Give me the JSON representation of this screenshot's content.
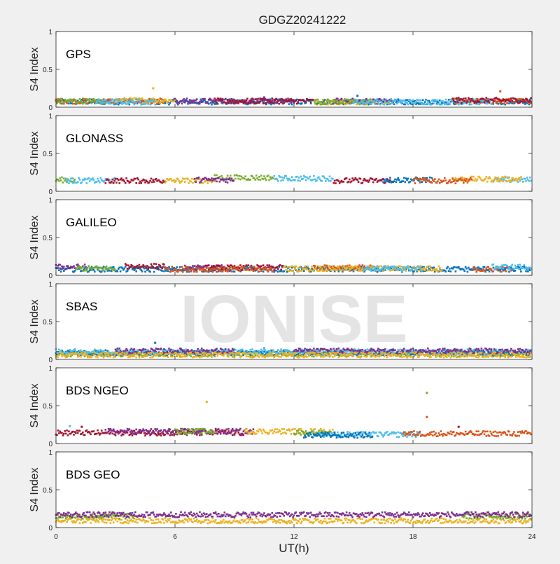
{
  "figure": {
    "title": "GDGZ20241222",
    "xlabel": "UT(h)",
    "watermark": "IONISE",
    "colors": {
      "background": "#f0f0f0",
      "axes_bg": "#ffffff",
      "watermark": "#e6e6e6"
    }
  },
  "chart_data": [
    {
      "type": "scatter",
      "panel": "GPS",
      "ylabel": "S4 Index",
      "xlim": [
        0,
        24
      ],
      "ylim": [
        0,
        1
      ],
      "xticks": [
        0,
        6,
        12,
        18,
        24
      ],
      "yticks": [
        0,
        0.5,
        1
      ],
      "grid": false,
      "series": [
        {
          "color": "#0072bd",
          "segments": [
            [
              0,
              24,
              0.07
            ]
          ]
        },
        {
          "color": "#d95319",
          "segments": [
            [
              0,
              5.5,
              0.08
            ],
            [
              20,
              24,
              0.08
            ]
          ]
        },
        {
          "color": "#edb120",
          "segments": [
            [
              3,
              6,
              0.09
            ],
            [
              13,
              17,
              0.07
            ]
          ]
        },
        {
          "color": "#7e2f8e",
          "segments": [
            [
              6,
              12,
              0.08
            ],
            [
              14,
              17,
              0.08
            ]
          ]
        },
        {
          "color": "#77ac30",
          "segments": [
            [
              0,
              2.5,
              0.08
            ],
            [
              13,
              16,
              0.07
            ]
          ]
        },
        {
          "color": "#4dbeee",
          "segments": [
            [
              2,
              5,
              0.07
            ],
            [
              15,
              22,
              0.07
            ]
          ]
        },
        {
          "color": "#a2142f",
          "segments": [
            [
              8,
              13,
              0.08
            ],
            [
              20,
              24,
              0.09
            ]
          ]
        }
      ],
      "outliers": [
        [
          4.9,
          0.25,
          "#edb120"
        ],
        [
          22.4,
          0.21,
          "#d95319"
        ],
        [
          15.2,
          0.15,
          "#0072bd"
        ],
        [
          10.5,
          0.13,
          "#7e2f8e"
        ]
      ]
    },
    {
      "type": "scatter",
      "panel": "GLONASS",
      "ylabel": "S4 Index",
      "xlim": [
        0,
        24
      ],
      "ylim": [
        0,
        1
      ],
      "xticks": [
        0,
        6,
        12,
        18,
        24
      ],
      "yticks": [
        0,
        0.5,
        1
      ],
      "grid": false,
      "series": [
        {
          "color": "#77ac30",
          "segments": [
            [
              0,
              1,
              0.15
            ],
            [
              8,
              11,
              0.18
            ]
          ]
        },
        {
          "color": "#4dbeee",
          "segments": [
            [
              0.5,
              3,
              0.14
            ],
            [
              11,
              14,
              0.17
            ],
            [
              22,
              24,
              0.15
            ]
          ]
        },
        {
          "color": "#a2142f",
          "segments": [
            [
              2.5,
              5.5,
              0.14
            ],
            [
              14,
              17,
              0.14
            ]
          ]
        },
        {
          "color": "#edb120",
          "segments": [
            [
              5.5,
              8,
              0.14
            ],
            [
              20,
              23.5,
              0.16
            ]
          ]
        },
        {
          "color": "#7e2f8e",
          "segments": [
            [
              7,
              9,
              0.15
            ]
          ]
        },
        {
          "color": "#0072bd",
          "segments": [
            [
              16.5,
              19,
              0.15
            ]
          ]
        },
        {
          "color": "#d95319",
          "segments": [
            [
              18,
              21,
              0.14
            ]
          ]
        }
      ],
      "outliers": []
    },
    {
      "type": "scatter",
      "panel": "GALILEO",
      "ylabel": "S4 Index",
      "xlim": [
        0,
        24
      ],
      "ylim": [
        0,
        1
      ],
      "xticks": [
        0,
        6,
        12,
        18,
        24
      ],
      "yticks": [
        0,
        0.5,
        1
      ],
      "grid": false,
      "series": [
        {
          "color": "#0072bd",
          "segments": [
            [
              0,
              24,
              0.08
            ]
          ]
        },
        {
          "color": "#7e2f8e",
          "segments": [
            [
              0,
              1.5,
              0.11
            ],
            [
              6.5,
              8.5,
              0.1
            ]
          ]
        },
        {
          "color": "#a2142f",
          "segments": [
            [
              3.5,
              5.5,
              0.12
            ],
            [
              7.5,
              11.5,
              0.1
            ]
          ]
        },
        {
          "color": "#77ac30",
          "segments": [
            [
              1,
              3,
              0.09
            ]
          ]
        },
        {
          "color": "#d95319",
          "segments": [
            [
              5.5,
              11,
              0.08
            ],
            [
              13,
              16,
              0.1
            ],
            [
              21,
              23,
              0.08
            ]
          ]
        },
        {
          "color": "#edb120",
          "segments": [
            [
              11.5,
              19.5,
              0.09
            ]
          ]
        },
        {
          "color": "#4dbeee",
          "segments": [
            [
              15.5,
              18.5,
              0.09
            ],
            [
              22,
              24,
              0.11
            ]
          ]
        }
      ],
      "outliers": []
    },
    {
      "type": "scatter",
      "panel": "SBAS",
      "ylabel": "S4 Index",
      "xlim": [
        0,
        24
      ],
      "ylim": [
        0,
        1
      ],
      "xticks": [
        0,
        6,
        12,
        18,
        24
      ],
      "yticks": [
        0,
        0.5,
        1
      ],
      "grid": false,
      "series": [
        {
          "color": "#77ac30",
          "segments": [
            [
              0,
              24,
              0.07
            ]
          ]
        },
        {
          "color": "#0072bd",
          "segments": [
            [
              0,
              24,
              0.09
            ]
          ]
        },
        {
          "color": "#4dbeee",
          "segments": [
            [
              0,
              24,
              0.1
            ]
          ]
        },
        {
          "color": "#7e2f8e",
          "segments": [
            [
              3,
              9,
              0.11
            ],
            [
              12,
              24,
              0.11
            ]
          ]
        },
        {
          "color": "#edb120",
          "segments": [
            [
              0,
              24,
              0.06
            ]
          ]
        }
      ],
      "outliers": [
        [
          5,
          0.22,
          "#0072bd"
        ],
        [
          10.5,
          0.15,
          "#4dbeee"
        ]
      ]
    },
    {
      "type": "scatter",
      "panel": "BDS NGEO",
      "ylabel": "S4 Index",
      "xlim": [
        0,
        24
      ],
      "ylim": [
        0,
        1
      ],
      "xticks": [
        0,
        6,
        12,
        18,
        24
      ],
      "yticks": [
        0,
        0.5,
        1
      ],
      "grid": false,
      "series": [
        {
          "color": "#a2142f",
          "segments": [
            [
              0,
              9.5,
              0.14
            ]
          ]
        },
        {
          "color": "#7e2f8e",
          "segments": [
            [
              2.5,
              10,
              0.16
            ]
          ]
        },
        {
          "color": "#edb120",
          "segments": [
            [
              9.5,
              14,
              0.16
            ]
          ]
        },
        {
          "color": "#77ac30",
          "segments": [
            [
              6,
              8,
              0.16
            ],
            [
              12,
              14,
              0.14
            ]
          ]
        },
        {
          "color": "#4dbeee",
          "segments": [
            [
              13,
              18.5,
              0.12
            ]
          ]
        },
        {
          "color": "#0072bd",
          "segments": [
            [
              12.5,
              16,
              0.11
            ]
          ]
        },
        {
          "color": "#d95319",
          "segments": [
            [
              17.5,
              24,
              0.13
            ]
          ]
        }
      ],
      "outliers": [
        [
          7.6,
          0.55,
          "#edb120"
        ],
        [
          18.7,
          0.67,
          "#77ac30"
        ],
        [
          18.7,
          0.35,
          "#d95319"
        ],
        [
          0.7,
          0.23,
          "#4dbeee"
        ],
        [
          1.3,
          0.22,
          "#a2142f"
        ],
        [
          20.3,
          0.22,
          "#a2142f"
        ]
      ]
    },
    {
      "type": "scatter",
      "panel": "BDS GEO",
      "ylabel": "S4 Index",
      "xlim": [
        0,
        24
      ],
      "ylim": [
        0,
        1
      ],
      "xticks": [
        0,
        6,
        12,
        18,
        24
      ],
      "yticks": [
        0,
        0.5,
        1
      ],
      "grid": false,
      "series": [
        {
          "color": "#edb120",
          "segments": [
            [
              0,
              24,
              0.09
            ]
          ]
        },
        {
          "color": "#77ac30",
          "segments": [
            [
              0,
              4,
              0.15
            ],
            [
              20.5,
              24,
              0.15
            ]
          ]
        },
        {
          "color": "#7e2f8e",
          "segments": [
            [
              0,
              24,
              0.17
            ]
          ]
        }
      ],
      "outliers": []
    }
  ]
}
